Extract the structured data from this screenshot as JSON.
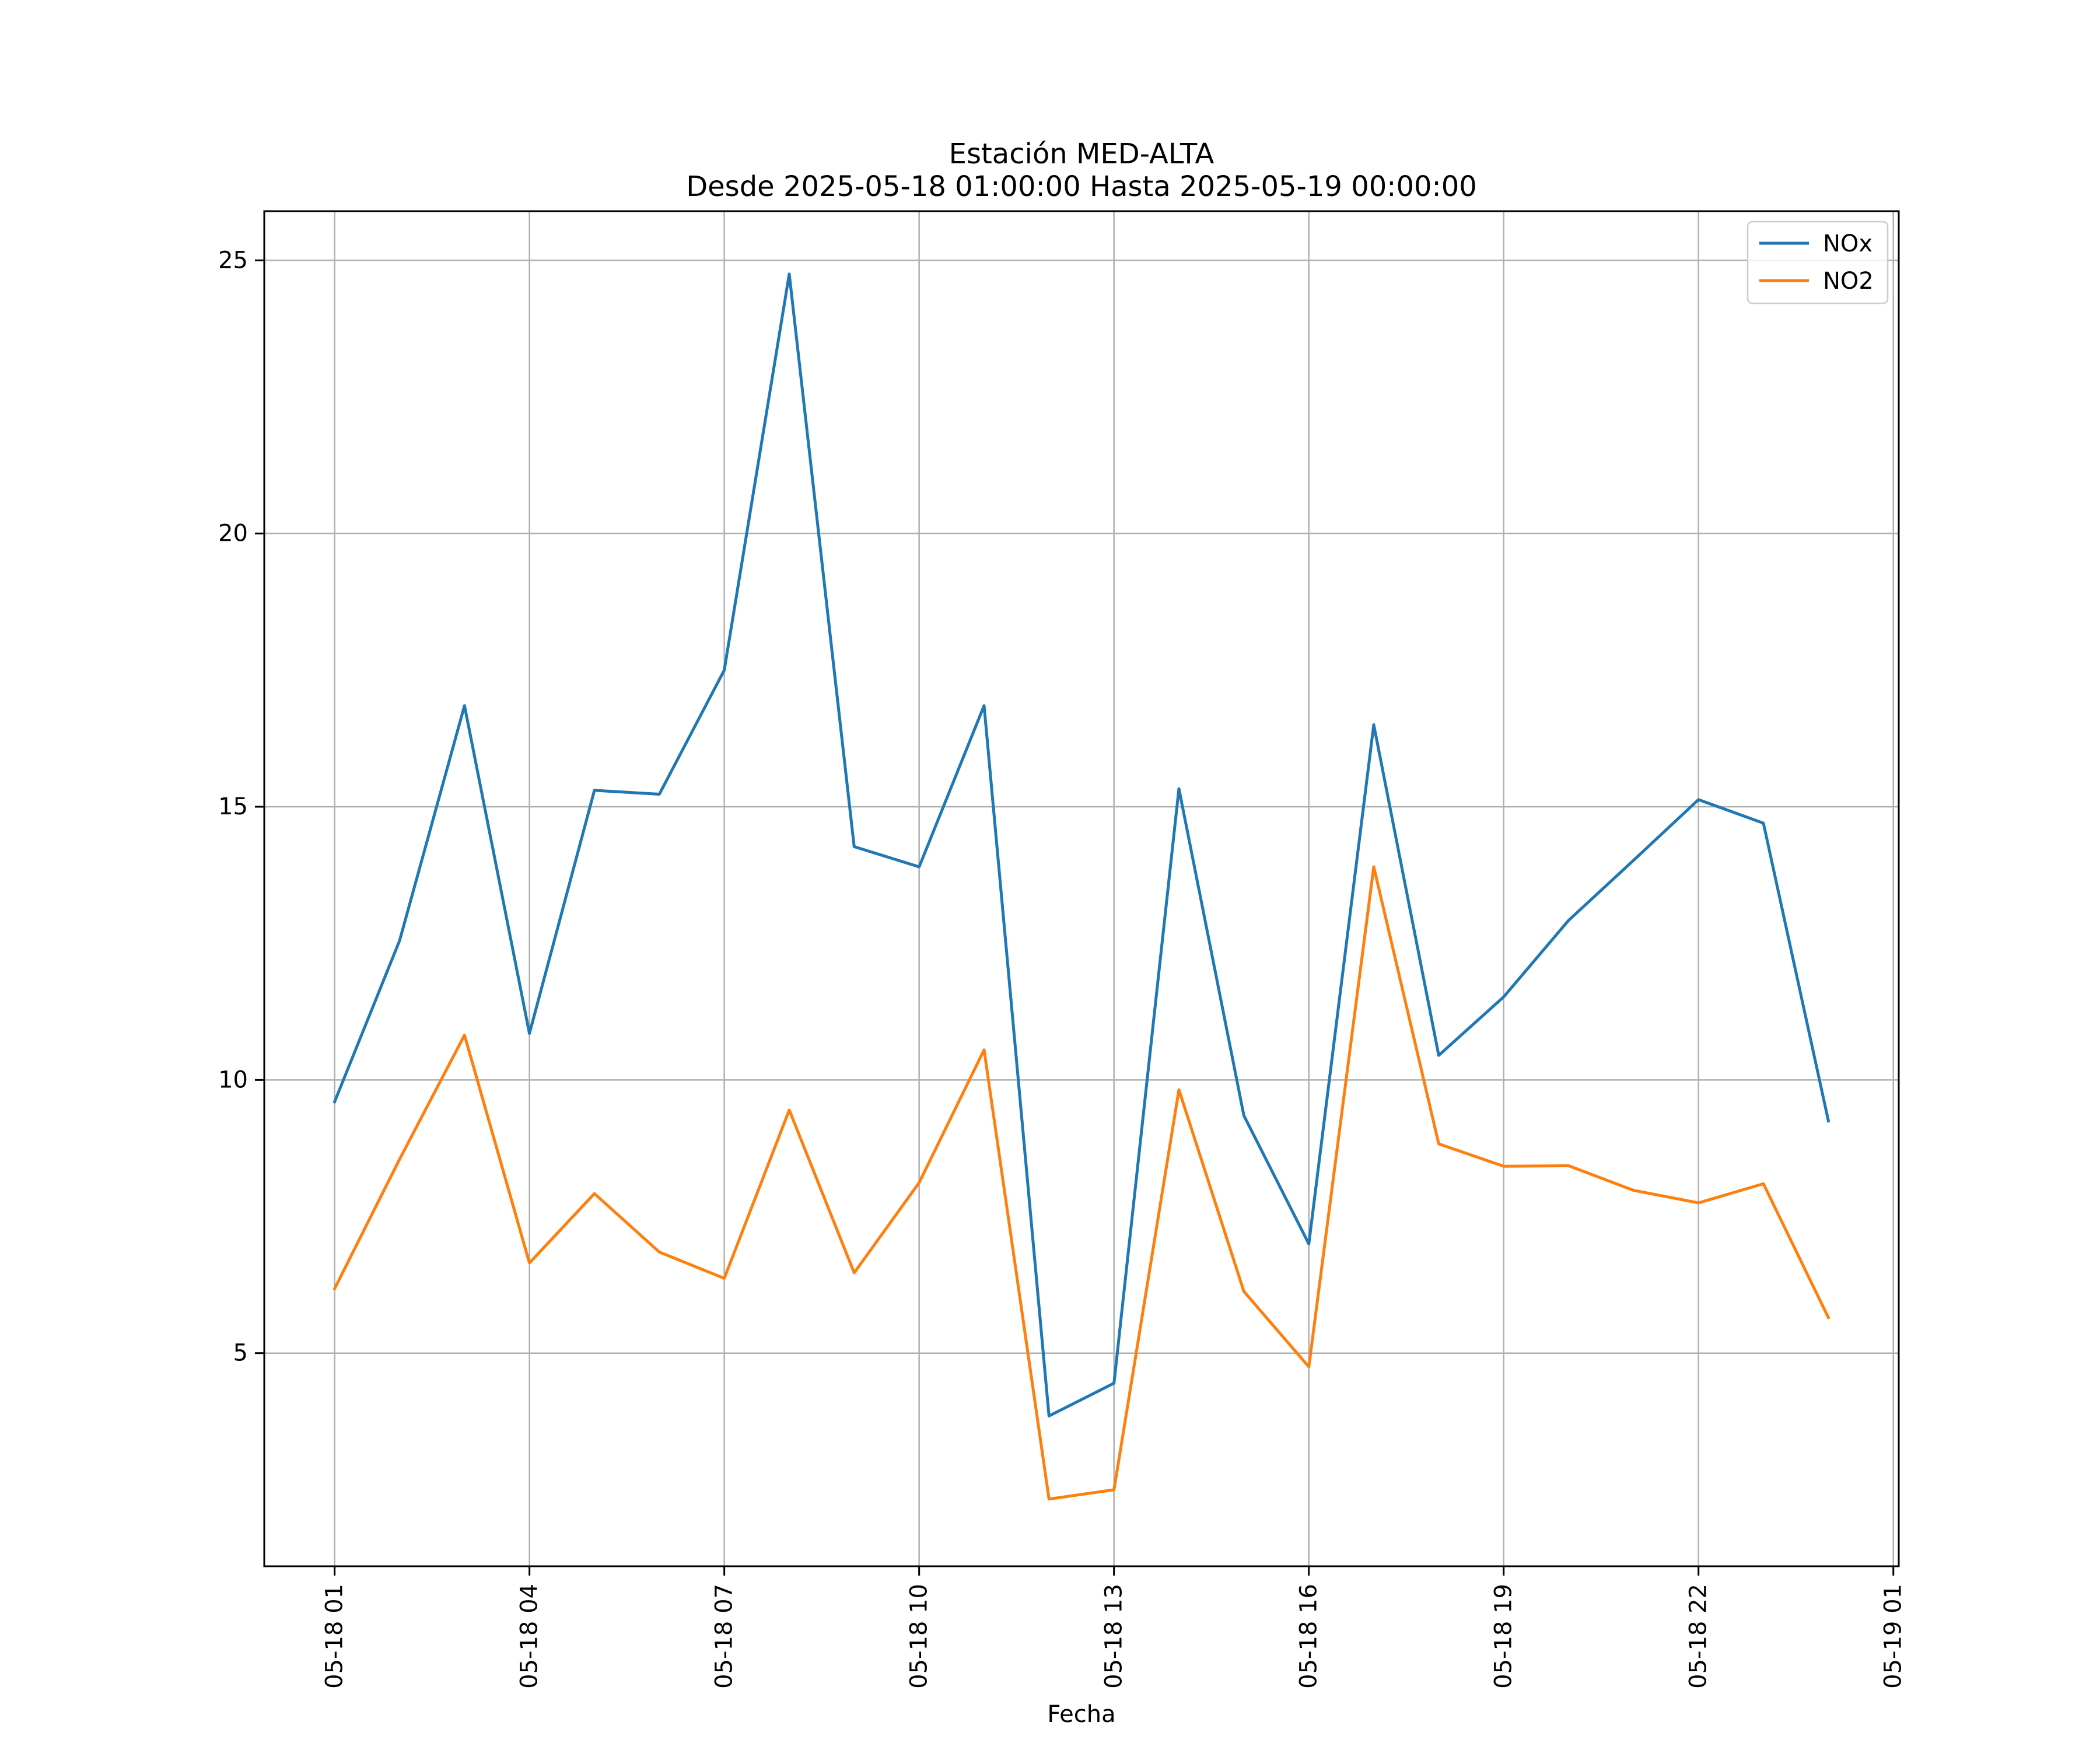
{
  "chart_data": {
    "type": "line",
    "title": "Estación MED-ALTA",
    "subtitle": "Desde 2025-05-18 01:00:00 Hasta 2025-05-19 00:00:00",
    "xlabel": "Fecha",
    "ylabel": "",
    "x": [
      "2025-05-18 01:00",
      "2025-05-18 02:00",
      "2025-05-18 03:00",
      "2025-05-18 04:00",
      "2025-05-18 05:00",
      "2025-05-18 06:00",
      "2025-05-18 07:00",
      "2025-05-18 08:00",
      "2025-05-18 09:00",
      "2025-05-18 10:00",
      "2025-05-18 11:00",
      "2025-05-18 12:00",
      "2025-05-18 13:00",
      "2025-05-18 14:00",
      "2025-05-18 15:00",
      "2025-05-18 16:00",
      "2025-05-18 17:00",
      "2025-05-18 18:00",
      "2025-05-18 19:00",
      "2025-05-18 20:00",
      "2025-05-18 21:00",
      "2025-05-18 22:00",
      "2025-05-18 23:00",
      "2025-05-19 00:00"
    ],
    "x_ticks": [
      "2025-05-18 01:00",
      "2025-05-18 04:00",
      "2025-05-18 07:00",
      "2025-05-18 10:00",
      "2025-05-18 13:00",
      "2025-05-18 16:00",
      "2025-05-18 19:00",
      "2025-05-18 22:00",
      "2025-05-19 01:00"
    ],
    "x_tick_labels": [
      "05-18 01",
      "05-18 04",
      "05-18 07",
      "05-18 10",
      "05-18 13",
      "05-18 16",
      "05-18 19",
      "05-18 22",
      "05-19 01"
    ],
    "xlim": [
      "2025-05-17 23:55",
      "2025-05-19 01:05"
    ],
    "y_ticks": [
      5,
      10,
      15,
      20,
      25
    ],
    "ylim": [
      1.1,
      25.9
    ],
    "grid": true,
    "legend": "top-right",
    "series": [
      {
        "name": "NOx",
        "color": "#1f77b4",
        "values": [
          9.6,
          12.55,
          16.85,
          10.85,
          15.3,
          15.23,
          17.5,
          24.75,
          14.27,
          13.9,
          16.85,
          3.85,
          4.45,
          15.33,
          9.35,
          7.0,
          16.5,
          10.45,
          11.52,
          12.92,
          14.02,
          15.13,
          14.7,
          9.25
        ]
      },
      {
        "name": "NO2",
        "color": "#ff7f0e",
        "values": [
          6.18,
          8.55,
          10.82,
          6.65,
          7.92,
          6.85,
          6.37,
          9.45,
          6.47,
          8.12,
          10.55,
          2.33,
          2.5,
          9.82,
          6.13,
          4.75,
          13.9,
          8.83,
          8.42,
          8.43,
          7.98,
          7.75,
          8.1,
          5.65
        ]
      }
    ]
  }
}
